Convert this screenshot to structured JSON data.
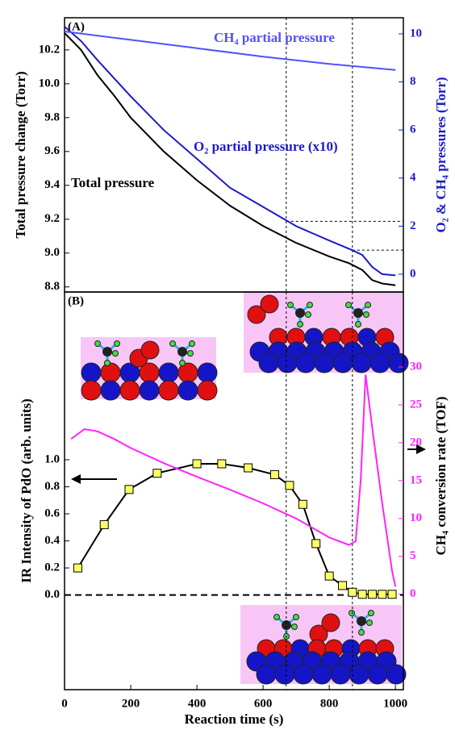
{
  "chart_data": [
    {
      "type": "line",
      "panel_label": "(A)",
      "ylabel": "Total pressure change (Torr)",
      "y2label": "O₂ & CH₄ pressures (Torr)",
      "xlim": [
        0,
        1024
      ],
      "ylim": [
        8.77,
        10.39
      ],
      "yticks": [
        8.8,
        {
          "value": 9,
          "label": "9.0"
        },
        9.2,
        9.4,
        9.6,
        9.8,
        {
          "value": 10,
          "label": "10.0"
        },
        10.2
      ],
      "y2lim": [
        -0.74,
        10.67
      ],
      "y2ticks": [
        0,
        2,
        4,
        6,
        8,
        10
      ],
      "y2color": "#1a1acc",
      "guides_x": [
        670,
        870
      ],
      "guides_y2": [
        2.2,
        1.0
      ],
      "series": [
        {
          "name": "Total pressure",
          "color": "#000000",
          "x": [
            0,
            50,
            100,
            150,
            200,
            300,
            400,
            500,
            600,
            700,
            800,
            860,
            900,
            930,
            960,
            1000
          ],
          "values": [
            10.3,
            10.2,
            10.05,
            9.93,
            9.8,
            9.6,
            9.43,
            9.28,
            9.16,
            9.06,
            8.98,
            8.94,
            8.9,
            8.84,
            8.82,
            8.81
          ]
        },
        {
          "name": "O₂ partial pressure (x10)",
          "color": "#1a1acc",
          "axis": "y2",
          "x": [
            0,
            50,
            100,
            200,
            300,
            400,
            500,
            600,
            700,
            800,
            870,
            900,
            930,
            960,
            1000
          ],
          "values": [
            10.3,
            9.7,
            8.9,
            7.4,
            6.0,
            4.8,
            3.6,
            2.8,
            2.0,
            1.4,
            1.0,
            0.8,
            0.3,
            0.0,
            -0.05
          ]
        },
        {
          "name": "CH₄ partial pressure",
          "color": "#5050ff",
          "axis": "y2",
          "x": [
            0,
            200,
            400,
            600,
            800,
            1000
          ],
          "values": [
            10.1,
            9.75,
            9.4,
            9.05,
            8.75,
            8.5
          ]
        }
      ]
    },
    {
      "type": "line",
      "panel_label": "(B)",
      "xlabel": "Reaction time (s)",
      "ylabel": "IR Intensity of PdO (arb. units)",
      "y2label": "CH₄ conversion rate (TOF)",
      "xlim": [
        0,
        1024
      ],
      "xticks": [
        0,
        200,
        400,
        600,
        800,
        1000
      ],
      "ylim": [
        -0.7,
        2.24
      ],
      "yticks": [
        {
          "value": 0,
          "label": "0.0"
        },
        0.2,
        0.4,
        0.6,
        0.8,
        {
          "value": 1,
          "label": "1.0"
        }
      ],
      "y2lim": [
        -12.6,
        39.9
      ],
      "y2ticks": [
        0,
        5,
        10,
        15,
        20,
        25,
        30
      ],
      "y2color": "#ff22ff",
      "hline": 0,
      "guides_x": [
        670,
        870
      ],
      "series": [
        {
          "color": "#000000",
          "marker": "square",
          "marker_color": "#ffff66",
          "x": [
            40,
            120,
            195,
            280,
            400,
            475,
            555,
            635,
            680,
            720,
            760,
            800,
            840,
            870,
            900,
            930,
            960,
            990
          ],
          "values": [
            0.2,
            0.52,
            0.78,
            0.9,
            0.97,
            0.97,
            0.94,
            0.89,
            0.81,
            0.67,
            0.38,
            0.14,
            0.07,
            0.02,
            0.005,
            0.005,
            0.005,
            0.005
          ]
        },
        {
          "color": "#ff22ff",
          "axis": "y2",
          "x": [
            20,
            60,
            100,
            150,
            200,
            300,
            400,
            500,
            600,
            700,
            800,
            860,
            880,
            895,
            910,
            930,
            960,
            990,
            1000
          ],
          "values": [
            20.5,
            21.8,
            21.5,
            20.5,
            19.3,
            17.3,
            15.5,
            13.8,
            12,
            10,
            7.5,
            6.5,
            7,
            15,
            29,
            22,
            12,
            3,
            1
          ]
        }
      ]
    }
  ]
}
